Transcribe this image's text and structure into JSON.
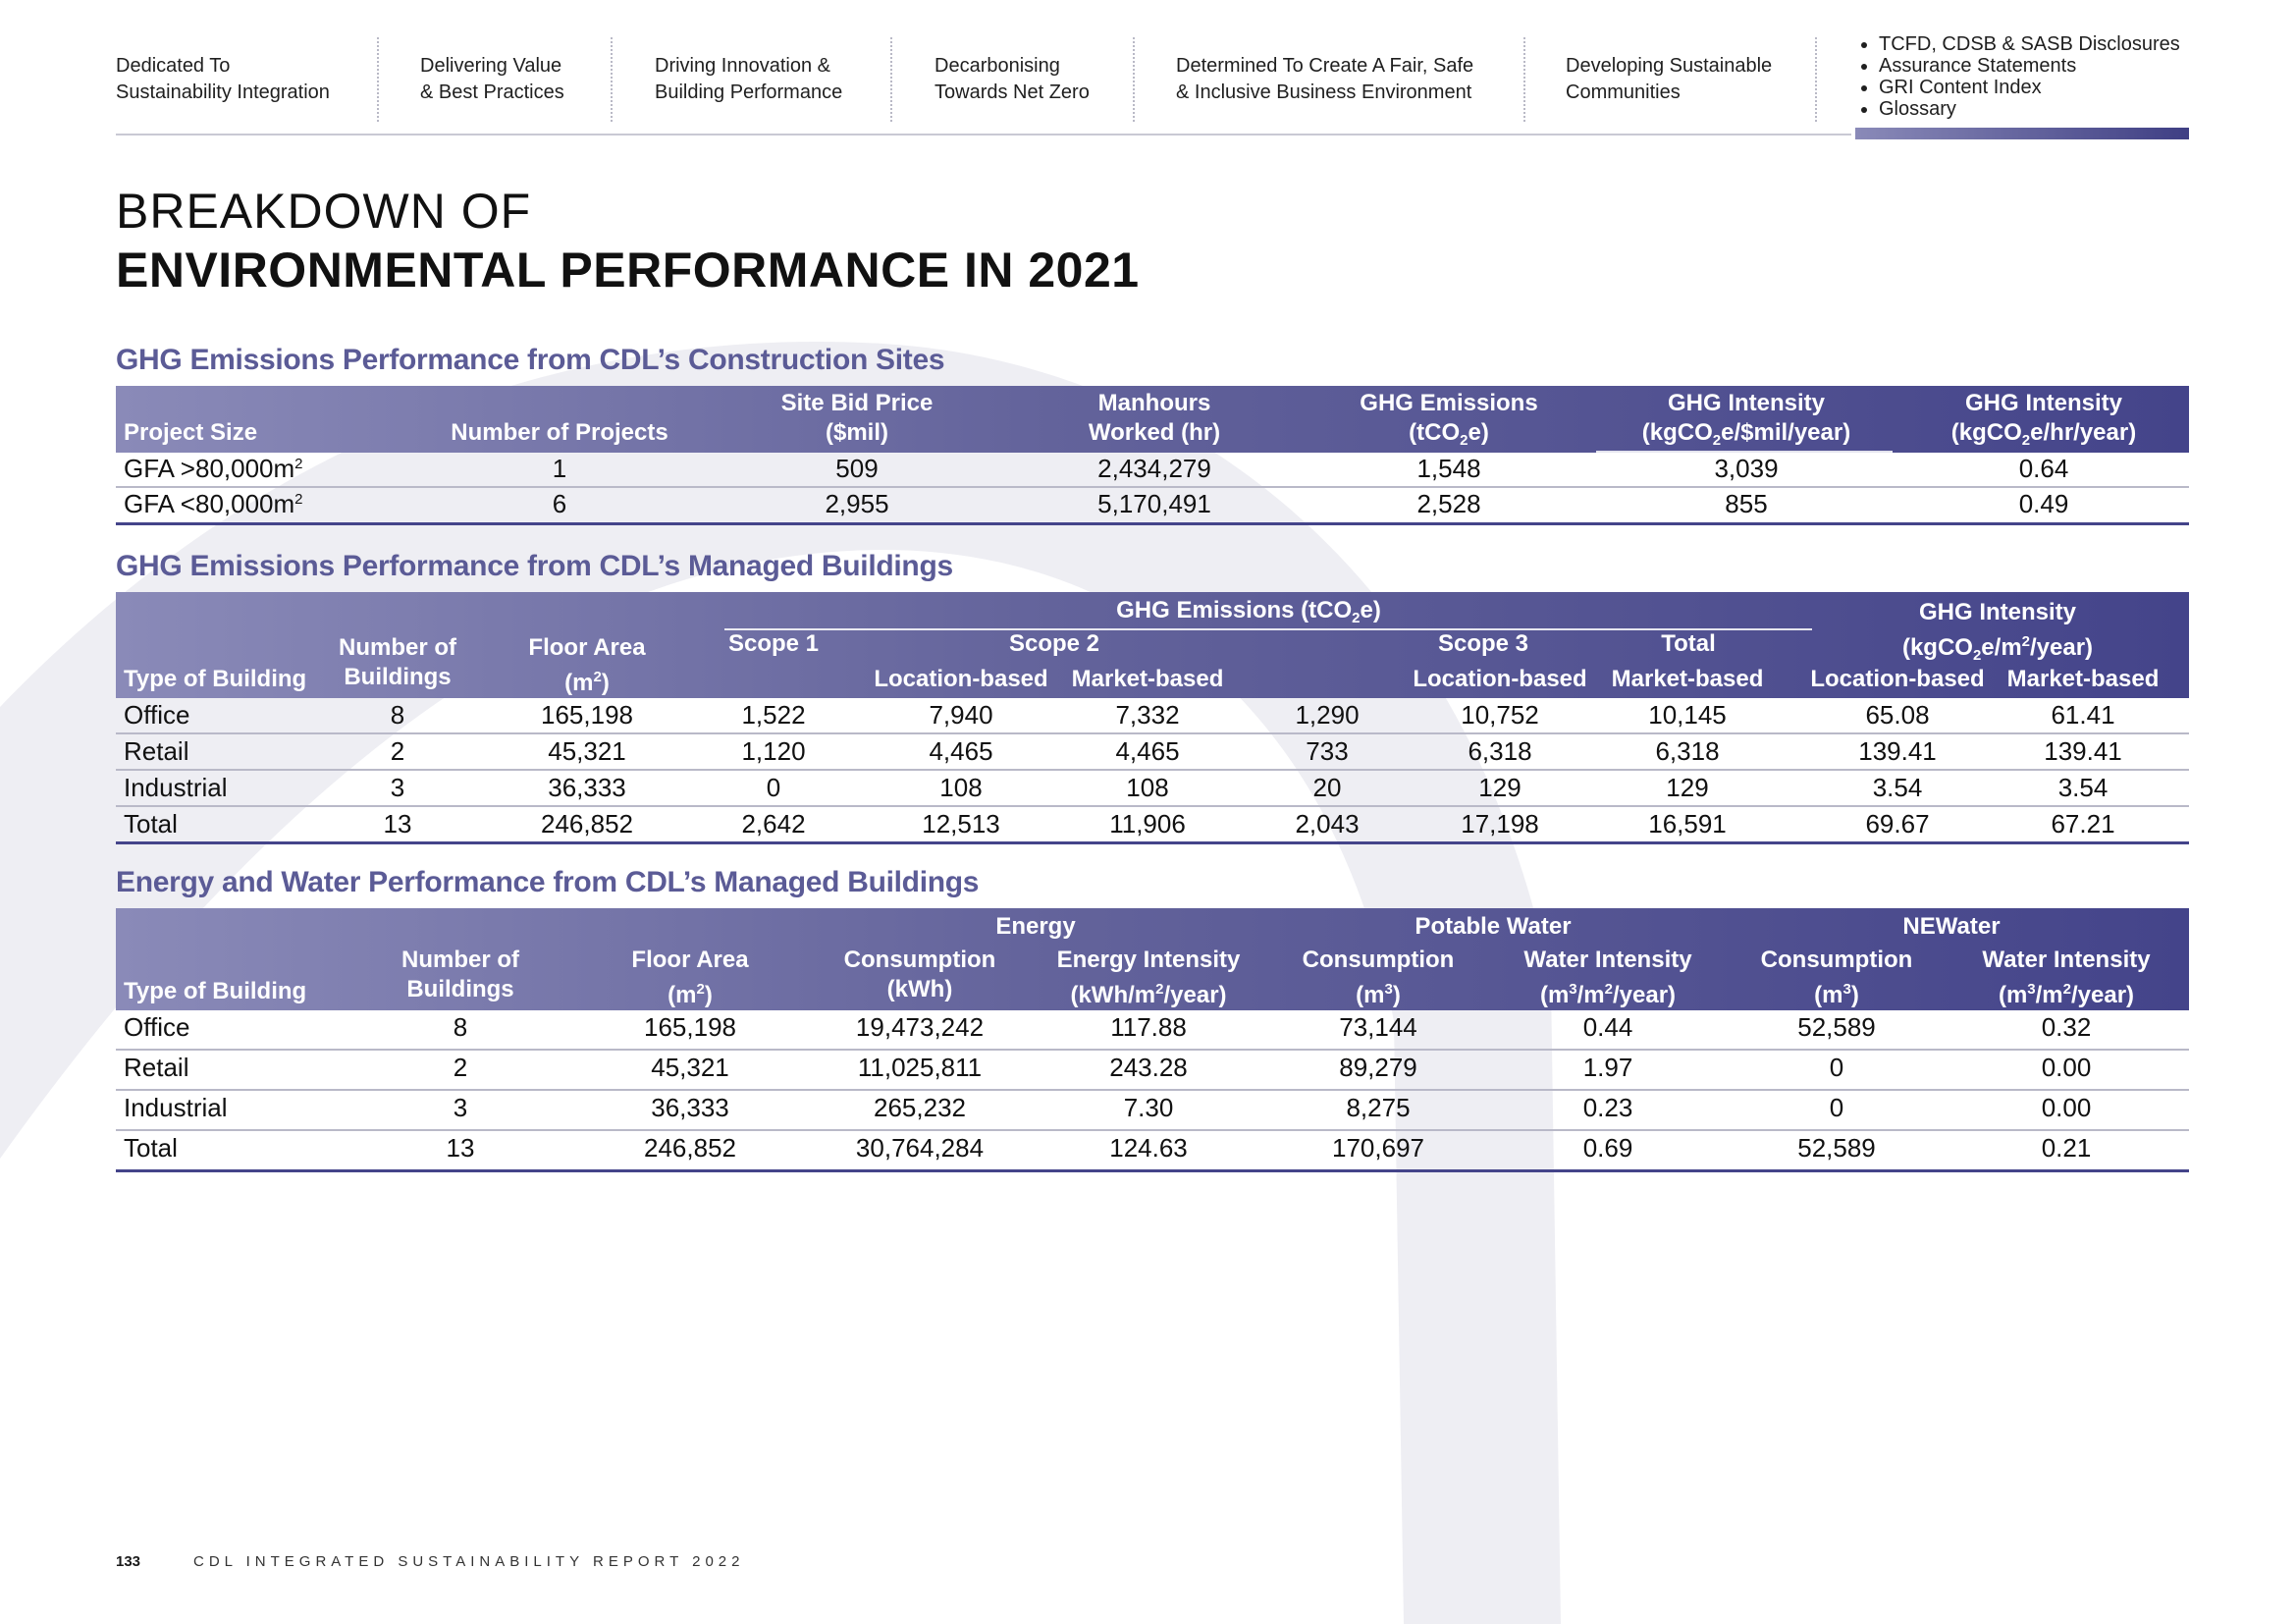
{
  "nav": {
    "items": [
      [
        "Dedicated To",
        "Sustainability Integration"
      ],
      [
        "Delivering Value",
        "& Best Practices"
      ],
      [
        "Driving Innovation &",
        "Building Performance"
      ],
      [
        "Decarbonising",
        "Towards Net Zero"
      ],
      [
        "Determined To Create A Fair, Safe",
        "& Inclusive Business Environment"
      ],
      [
        "Developing Sustainable",
        "Communities"
      ]
    ],
    "list": [
      "TCFD, CDSB & SASB Disclosures",
      "Assurance Statements",
      "GRI Content Index",
      "Glossary"
    ]
  },
  "title": {
    "line1": "BREAKDOWN OF",
    "line2": "ENVIRONMENTAL PERFORMANCE IN 2021"
  },
  "construction": {
    "heading": "GHG Emissions Performance from CDL’s Construction Sites",
    "headers": {
      "project_size": "Project Size",
      "num_projects": "Number of Projects",
      "bid_price": [
        "Site Bid Price",
        "($mil)"
      ],
      "manhours": [
        "Manhours",
        "Worked (hr)"
      ],
      "ghg": [
        "GHG Emissions",
        "(tCO",
        "2",
        "e)"
      ],
      "ghg_int1": [
        "GHG Intensity",
        "(kgCO",
        "2",
        "e/$mil/year)"
      ],
      "ghg_int2": [
        "GHG Intensity",
        "(kgCO",
        "2",
        "e/hr/year)"
      ]
    },
    "rows": [
      {
        "size": "GFA >80,000m",
        "sup": "2",
        "projects": "1",
        "bid": "509",
        "manhours": "2,434,279",
        "ghg": "1,548",
        "int1": "3,039",
        "int2": "0.64"
      },
      {
        "size": "GFA <80,000m",
        "sup": "2",
        "projects": "6",
        "bid": "2,955",
        "manhours": "5,170,491",
        "ghg": "2,528",
        "int1": "855",
        "int2": "0.49"
      }
    ]
  },
  "managed": {
    "heading": "GHG Emissions Performance from CDL’s Managed Buildings",
    "headers": {
      "ghg_group": [
        "GHG Emissions (tCO",
        "2",
        "e)"
      ],
      "type": "Type of Building",
      "num": [
        "Number of",
        "Buildings"
      ],
      "floor": [
        "Floor Area",
        "(m",
        "2",
        ")"
      ],
      "scope1": "Scope 1",
      "scope2": "Scope 2",
      "scope3": "Scope 3",
      "total": "Total",
      "intensity": [
        "GHG Intensity",
        "(kgCO",
        "2",
        "e/m",
        "2",
        "/year)"
      ],
      "loc": "Location-based",
      "mkt": "Market-based"
    },
    "rows": [
      [
        "Office",
        "8",
        "165,198",
        "1,522",
        "7,940",
        "7,332",
        "1,290",
        "10,752",
        "10,145",
        "65.08",
        "61.41"
      ],
      [
        "Retail",
        "2",
        "45,321",
        "1,120",
        "4,465",
        "4,465",
        "733",
        "6,318",
        "6,318",
        "139.41",
        "139.41"
      ],
      [
        "Industrial",
        "3",
        "36,333",
        "0",
        "108",
        "108",
        "20",
        "129",
        "129",
        "3.54",
        "3.54"
      ],
      [
        "Total",
        "13",
        "246,852",
        "2,642",
        "12,513",
        "11,906",
        "2,043",
        "17,198",
        "16,591",
        "69.67",
        "67.21"
      ]
    ]
  },
  "energy": {
    "heading": "Energy and Water Performance from CDL’s Managed Buildings",
    "headers": {
      "energy": "Energy",
      "potable": "Potable Water",
      "newater": "NEWater",
      "type": "Type of Building",
      "num": [
        "Number of",
        "Buildings"
      ],
      "floor": [
        "Floor Area",
        "(m",
        "2",
        ")"
      ],
      "e_cons": [
        "Consumption",
        "(kWh)"
      ],
      "e_int": [
        "Energy Intensity",
        "(kWh/m",
        "2",
        "/year)"
      ],
      "w_cons": [
        "Consumption",
        "(m",
        "3",
        ")"
      ],
      "w_int": [
        "Water Intensity",
        "(m",
        "3",
        "/m",
        "2",
        "/year)"
      ],
      "n_cons": [
        "Consumption",
        "(m",
        "3",
        ")"
      ],
      "n_int": [
        "Water Intensity",
        "(m",
        "3",
        "/m",
        "2",
        "/year)"
      ]
    },
    "rows": [
      [
        "Office",
        "8",
        "165,198",
        "19,473,242",
        "117.88",
        "73,144",
        "0.44",
        "52,589",
        "0.32"
      ],
      [
        "Retail",
        "2",
        "45,321",
        "11,025,811",
        "243.28",
        "89,279",
        "1.97",
        "0",
        "0.00"
      ],
      [
        "Industrial",
        "3",
        "36,333",
        "265,232",
        "7.30",
        "8,275",
        "0.23",
        "0",
        "0.00"
      ],
      [
        "Total",
        "13",
        "246,852",
        "30,764,284",
        "124.63",
        "170,697",
        "0.69",
        "52,589",
        "0.21"
      ]
    ]
  },
  "footer": {
    "page": "133",
    "report": "CDL INTEGRATED SUSTAINABILITY REPORT 2022"
  }
}
